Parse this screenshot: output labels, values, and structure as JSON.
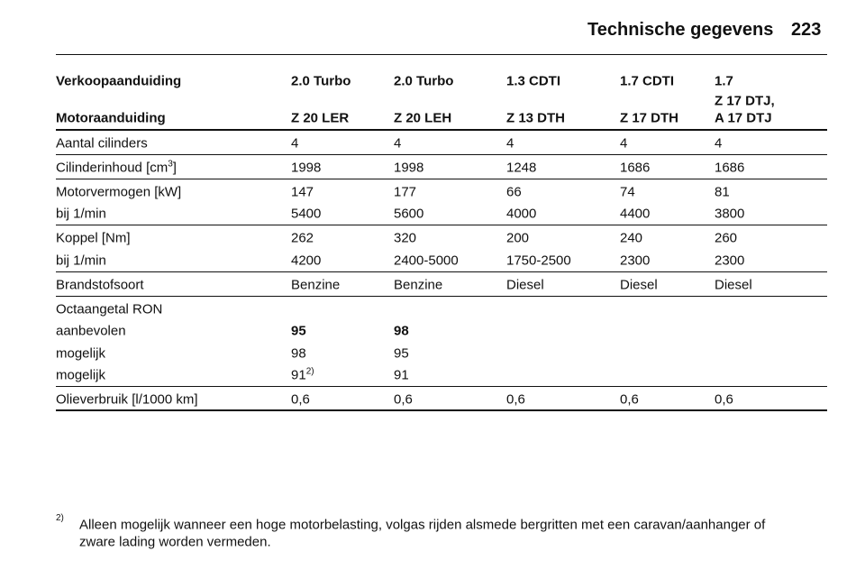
{
  "header": {
    "title": "Technische gegevens",
    "page": "223"
  },
  "table": {
    "head": [
      [
        "Verkoopaanduiding",
        "2.0 Turbo",
        "2.0 Turbo",
        "1.3 CDTI",
        "1.7 CDTI",
        "1.7"
      ],
      [
        "Motoraanduiding",
        "Z 20 LER",
        "Z 20 LEH",
        "Z 13 DTH",
        "Z 17 DTH",
        [
          "Z 17 DTJ,",
          "A 17 DTJ"
        ]
      ]
    ],
    "groups": [
      [
        {
          "label": "Aantal cilinders",
          "cells": [
            "4",
            "4",
            "4",
            "4",
            "4"
          ]
        }
      ],
      [
        {
          "label": {
            "text": "Cilinderinhoud [cm",
            "sup": "3",
            "tail": "]"
          },
          "cells": [
            "1998",
            "1998",
            "1248",
            "1686",
            "1686"
          ]
        }
      ],
      [
        {
          "label": "Motorvermogen [kW]",
          "cells": [
            "147",
            "177",
            "66",
            "74",
            "81"
          ]
        },
        {
          "label": "bij 1/min",
          "cells": [
            "5400",
            "5600",
            "4000",
            "4400",
            "3800"
          ]
        }
      ],
      [
        {
          "label": "Koppel [Nm]",
          "cells": [
            "262",
            "320",
            "200",
            "240",
            "260"
          ]
        },
        {
          "label": "bij 1/min",
          "cells": [
            "4200",
            "2400-5000",
            "1750-2500",
            "2300",
            "2300"
          ]
        }
      ],
      [
        {
          "label": "Brandstofsoort",
          "cells": [
            "Benzine",
            "Benzine",
            "Diesel",
            "Diesel",
            "Diesel"
          ]
        }
      ],
      [
        {
          "label": "Octaangetal RON",
          "cells": []
        },
        {
          "label": "aanbevolen",
          "cells": [
            "95",
            "98"
          ]
        },
        {
          "label": "mogelijk",
          "cells": [
            "98",
            "95"
          ]
        },
        {
          "label": "mogelijk",
          "cells": [
            {
              "text": "91",
              "sup": "2)"
            },
            "91"
          ]
        }
      ],
      [
        {
          "label": "Olieverbruik [l/1000 km]",
          "cells": [
            "0,6",
            "0,6",
            "0,6",
            "0,6",
            "0,6"
          ]
        }
      ]
    ]
  },
  "footnote": {
    "marker": "2)",
    "lines": [
      "Alleen mogelijk wanneer een hoge motorbelasting, volgas rijden alsmede bergritten met een caravan/aanhanger of",
      "zware lading worden vermeden."
    ]
  }
}
